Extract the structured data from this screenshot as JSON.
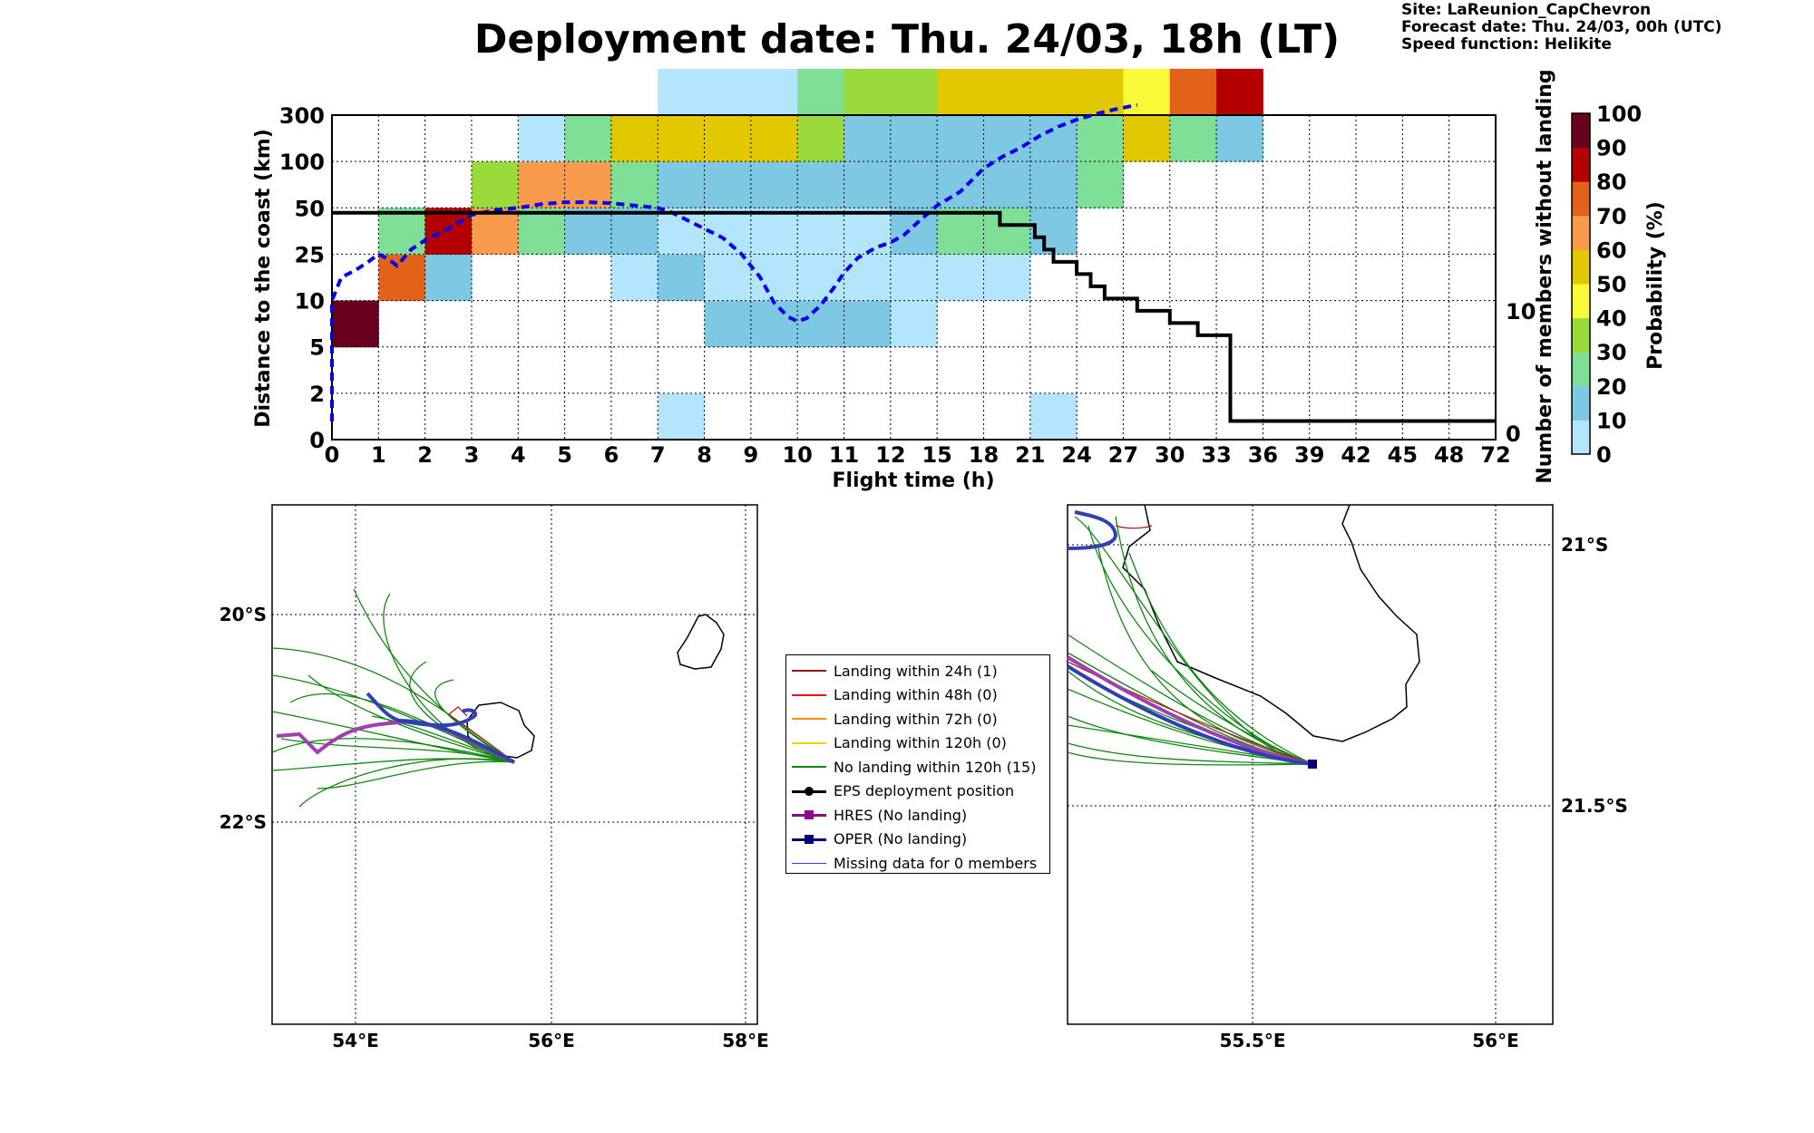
{
  "header": {
    "title": "Deployment date: Thu. 24/03, 18h (LT)",
    "site": "Site: LaReunion_CapChevron",
    "forecast": "Forecast date: Thu. 24/03, 00h (UTC)",
    "speed": "Speed function: Helikite"
  },
  "colorbar": {
    "label": "Probability (%)",
    "ticks": [
      "0",
      "10",
      "20",
      "30",
      "40",
      "50",
      "60",
      "70",
      "80",
      "90",
      "100"
    ],
    "colors": [
      "#b3e5fc",
      "#7ec8e3",
      "#7fdf96",
      "#9adb3b",
      "#f9f93a",
      "#e1c800",
      "#f99b4d",
      "#e36219",
      "#b50000",
      "#6a0020"
    ]
  },
  "chart_data": [
    {
      "type": "heatmap",
      "xlabel": "Flight time (h)",
      "ylabel": "Distance to the coast (km)",
      "y2label": "Number of members without landing",
      "x_ticks": [
        "0",
        "1",
        "2",
        "3",
        "4",
        "5",
        "6",
        "7",
        "8",
        "9",
        "10",
        "11",
        "12",
        "15",
        "18",
        "21",
        "24",
        "27",
        "30",
        "33",
        "36",
        "39",
        "42",
        "45",
        "48",
        "72"
      ],
      "y_ticks": [
        "0",
        "2",
        "5",
        "10",
        "25",
        "50",
        "100",
        "300"
      ],
      "y2_ticks": [
        "0",
        "10"
      ],
      "value_legend": "Probability (%) class: 0 = 0-10, 1 = 10-20, 2 = 20-30, 3 = 30-40, 4 = 40-50, 5 = 50-60, 6 = 60-70, 7 = 70-80, 8 = 80-90, 9 = 90-100",
      "cells": [
        {
          "x": 0,
          "y": 2,
          "class": 9
        },
        {
          "x": 1,
          "y": 3,
          "class": 7
        },
        {
          "x": 1,
          "y": 4,
          "class": 2
        },
        {
          "x": 2,
          "y": 3,
          "class": 1
        },
        {
          "x": 2,
          "y": 4,
          "class": 8
        },
        {
          "x": 3,
          "y": 4,
          "class": 6
        },
        {
          "x": 3,
          "y": 5,
          "class": 3
        },
        {
          "x": 4,
          "y": 4,
          "class": 2
        },
        {
          "x": 4,
          "y": 5,
          "class": 6
        },
        {
          "x": 4,
          "y": 6,
          "class": 0
        },
        {
          "x": 5,
          "y": 4,
          "class": 1
        },
        {
          "x": 5,
          "y": 5,
          "class": 6
        },
        {
          "x": 5,
          "y": 6,
          "class": 2
        },
        {
          "x": 6,
          "y": 3,
          "class": 0
        },
        {
          "x": 6,
          "y": 4,
          "class": 1
        },
        {
          "x": 6,
          "y": 5,
          "class": 2
        },
        {
          "x": 6,
          "y": 6,
          "class": 5
        },
        {
          "x": 7,
          "y": 0,
          "class": 0
        },
        {
          "x": 7,
          "y": 3,
          "class": 1
        },
        {
          "x": 7,
          "y": 4,
          "class": 0
        },
        {
          "x": 7,
          "y": 5,
          "class": 1
        },
        {
          "x": 7,
          "y": 6,
          "class": 5
        },
        {
          "x": 7,
          "y": 7,
          "class": 0
        },
        {
          "x": 8,
          "y": 2,
          "class": 1
        },
        {
          "x": 8,
          "y": 3,
          "class": 0
        },
        {
          "x": 8,
          "y": 4,
          "class": 0
        },
        {
          "x": 8,
          "y": 5,
          "class": 1
        },
        {
          "x": 8,
          "y": 6,
          "class": 5
        },
        {
          "x": 8,
          "y": 7,
          "class": 0
        },
        {
          "x": 9,
          "y": 2,
          "class": 1
        },
        {
          "x": 9,
          "y": 3,
          "class": 0
        },
        {
          "x": 9,
          "y": 4,
          "class": 0
        },
        {
          "x": 9,
          "y": 5,
          "class": 1
        },
        {
          "x": 9,
          "y": 6,
          "class": 5
        },
        {
          "x": 9,
          "y": 7,
          "class": 0
        },
        {
          "x": 10,
          "y": 2,
          "class": 1
        },
        {
          "x": 10,
          "y": 3,
          "class": 0
        },
        {
          "x": 10,
          "y": 4,
          "class": 0
        },
        {
          "x": 10,
          "y": 5,
          "class": 1
        },
        {
          "x": 10,
          "y": 6,
          "class": 3
        },
        {
          "x": 10,
          "y": 7,
          "class": 2
        },
        {
          "x": 11,
          "y": 2,
          "class": 1
        },
        {
          "x": 11,
          "y": 3,
          "class": 0
        },
        {
          "x": 11,
          "y": 4,
          "class": 0
        },
        {
          "x": 11,
          "y": 5,
          "class": 1
        },
        {
          "x": 11,
          "y": 6,
          "class": 1
        },
        {
          "x": 11,
          "y": 7,
          "class": 3
        },
        {
          "x": 12,
          "y": 2,
          "class": 0
        },
        {
          "x": 12,
          "y": 3,
          "class": 0
        },
        {
          "x": 12,
          "y": 4,
          "class": 1
        },
        {
          "x": 12,
          "y": 5,
          "class": 1
        },
        {
          "x": 12,
          "y": 6,
          "class": 1
        },
        {
          "x": 12,
          "y": 7,
          "class": 3
        },
        {
          "x": 13,
          "y": 3,
          "class": 0
        },
        {
          "x": 13,
          "y": 4,
          "class": 2
        },
        {
          "x": 13,
          "y": 5,
          "class": 1
        },
        {
          "x": 13,
          "y": 6,
          "class": 1
        },
        {
          "x": 13,
          "y": 7,
          "class": 5
        },
        {
          "x": 14,
          "y": 3,
          "class": 0
        },
        {
          "x": 14,
          "y": 4,
          "class": 2
        },
        {
          "x": 14,
          "y": 5,
          "class": 1
        },
        {
          "x": 14,
          "y": 6,
          "class": 1
        },
        {
          "x": 14,
          "y": 7,
          "class": 5
        },
        {
          "x": 15,
          "y": 0,
          "class": 0
        },
        {
          "x": 15,
          "y": 4,
          "class": 1
        },
        {
          "x": 15,
          "y": 5,
          "class": 1
        },
        {
          "x": 15,
          "y": 6,
          "class": 1
        },
        {
          "x": 15,
          "y": 7,
          "class": 5
        },
        {
          "x": 16,
          "y": 5,
          "class": 2
        },
        {
          "x": 16,
          "y": 6,
          "class": 2
        },
        {
          "x": 16,
          "y": 7,
          "class": 5
        },
        {
          "x": 17,
          "y": 6,
          "class": 5
        },
        {
          "x": 17,
          "y": 7,
          "class": 4
        },
        {
          "x": 18,
          "y": 6,
          "class": 2
        },
        {
          "x": 18,
          "y": 7,
          "class": 7
        },
        {
          "x": 19,
          "y": 6,
          "class": 1
        },
        {
          "x": 19,
          "y": 7,
          "class": 8
        }
      ],
      "series": [
        {
          "type": "line",
          "style": "dashed",
          "color": "#0000ee",
          "x_index": [
            0,
            0.2,
            0.5,
            0.8,
            1.0,
            1.2,
            1.4,
            1.7,
            2.0,
            2.5,
            3.0,
            3.5,
            4.0,
            4.5,
            5.0,
            5.5,
            6.0,
            6.5,
            7.0,
            7.3,
            7.6,
            8.0,
            8.4,
            8.8,
            9.2,
            9.5,
            9.8,
            10.0,
            10.2,
            10.5,
            10.8,
            11.0,
            11.3,
            11.7,
            12.0,
            12.3,
            12.6,
            13.0,
            13.5,
            14.0,
            14.4,
            14.8,
            15.2,
            15.6,
            16.0,
            16.4,
            16.8,
            17.3
          ],
          "y_index": [
            3.0,
            3.5,
            3.65,
            3.85,
            4.0,
            3.9,
            3.75,
            4.1,
            4.3,
            4.55,
            4.85,
            4.95,
            5.0,
            5.08,
            5.12,
            5.12,
            5.1,
            5.05,
            5.0,
            4.9,
            4.75,
            4.55,
            4.35,
            4.0,
            3.5,
            2.95,
            2.65,
            2.55,
            2.62,
            2.9,
            3.3,
            3.6,
            3.92,
            4.15,
            4.25,
            4.42,
            4.7,
            5.05,
            5.35,
            5.85,
            6.1,
            6.3,
            6.55,
            6.75,
            6.9,
            7.02,
            7.12,
            7.22
          ]
        },
        {
          "type": "step",
          "color": "#000000",
          "x_index": [
            0,
            14.35,
            14.35,
            15.1,
            15.1,
            15.3,
            15.3,
            15.5,
            15.5,
            16.0,
            16.0,
            16.3,
            16.3,
            16.6,
            16.6,
            17.3,
            17.3,
            18.0,
            18.0,
            18.6,
            18.6,
            19.3,
            19.3,
            19.5,
            19.5,
            25
          ],
          "members": [
            18,
            18,
            17,
            17,
            16,
            16,
            15,
            15,
            14,
            14,
            13,
            13,
            12,
            12,
            11,
            11,
            10,
            10,
            9,
            9,
            8,
            8,
            1,
            1,
            1,
            1
          ]
        }
      ]
    },
    {
      "type": "map",
      "x_ticks": [
        "54°E",
        "56°E",
        "58°E"
      ],
      "y_ticks": [
        "20°S",
        "22°S"
      ]
    },
    {
      "type": "map",
      "x_ticks": [
        "55.5°E",
        "56°E"
      ],
      "y_ticks": [
        "21°S",
        "21.5°S"
      ]
    }
  ],
  "legend": [
    {
      "label": "Landing within 24h (1)",
      "color": "#8b1a1a",
      "style": "line"
    },
    {
      "label": "Landing within 48h (0)",
      "color": "#ee1111",
      "style": "line"
    },
    {
      "label": "Landing within 72h (0)",
      "color": "#ff8c00",
      "style": "line"
    },
    {
      "label": "Landing within 120h (0)",
      "color": "#f5d000",
      "style": "line"
    },
    {
      "label": "No landing within 120h (15)",
      "color": "#118811",
      "style": "line"
    },
    {
      "label": "EPS deployment position",
      "color": "#000000",
      "style": "dot"
    },
    {
      "label": "HRES (No landing)",
      "color": "#8b0a8b",
      "style": "square"
    },
    {
      "label": "OPER (No landing)",
      "color": "#00007a",
      "style": "square"
    },
    {
      "label": "Missing data for 0 members",
      "color": "#3333ff",
      "style": "thin"
    }
  ]
}
